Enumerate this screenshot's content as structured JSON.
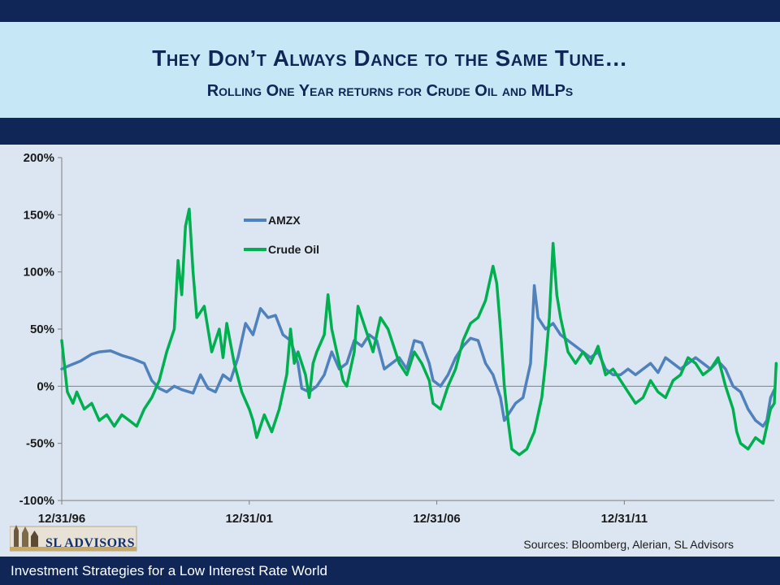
{
  "slide": {
    "title": "They Don’t Always Dance to the Same Tune…",
    "subtitle": "Rolling One Year returns for Crude Oil and MLPs",
    "sources": "Sources: Bloomberg, Alerian, SL Advisors",
    "footer": "Investment Strategies for a Low Interest Rate World",
    "logo_text": "SL ADVISORS"
  },
  "colors": {
    "navy": "#0f2657",
    "light_blue_panel": "#c6e7f6",
    "amzx": "#4f81bd",
    "crude": "#00b050"
  },
  "chart_data": {
    "type": "line",
    "ylabel": "",
    "xlabel": "",
    "ylim": [
      -100,
      200
    ],
    "yticks": [
      "200%",
      "150%",
      "100%",
      "50%",
      "0%",
      "-50%",
      "-100%"
    ],
    "xlim": [
      1997.0,
      2016.0
    ],
    "xticks": [
      {
        "label": "12/31/96",
        "x": 1997.0
      },
      {
        "label": "12/31/01",
        "x": 2002.0
      },
      {
        "label": "12/31/06",
        "x": 2007.0
      },
      {
        "label": "12/31/11",
        "x": 2012.0
      }
    ],
    "grid": false,
    "legend": "upper-middle",
    "series": [
      {
        "name": "AMZX",
        "color": "#4f81bd",
        "points": [
          [
            1997.0,
            15
          ],
          [
            1997.2,
            18
          ],
          [
            1997.5,
            22
          ],
          [
            1997.8,
            28
          ],
          [
            1998.0,
            30
          ],
          [
            1998.3,
            31
          ],
          [
            1998.6,
            27
          ],
          [
            1998.9,
            24
          ],
          [
            1999.2,
            20
          ],
          [
            1999.4,
            5
          ],
          [
            1999.6,
            -2
          ],
          [
            1999.8,
            -5
          ],
          [
            2000.0,
            0
          ],
          [
            2000.2,
            -3
          ],
          [
            2000.5,
            -6
          ],
          [
            2000.7,
            10
          ],
          [
            2000.9,
            -2
          ],
          [
            2001.1,
            -5
          ],
          [
            2001.3,
            10
          ],
          [
            2001.5,
            5
          ],
          [
            2001.7,
            25
          ],
          [
            2001.9,
            55
          ],
          [
            2002.1,
            45
          ],
          [
            2002.3,
            68
          ],
          [
            2002.5,
            60
          ],
          [
            2002.7,
            62
          ],
          [
            2002.9,
            45
          ],
          [
            2003.1,
            40
          ],
          [
            2003.3,
            20
          ],
          [
            2003.4,
            -2
          ],
          [
            2003.6,
            -5
          ],
          [
            2003.8,
            0
          ],
          [
            2004.0,
            10
          ],
          [
            2004.2,
            30
          ],
          [
            2004.4,
            15
          ],
          [
            2004.6,
            20
          ],
          [
            2004.8,
            40
          ],
          [
            2005.0,
            35
          ],
          [
            2005.2,
            45
          ],
          [
            2005.4,
            40
          ],
          [
            2005.6,
            15
          ],
          [
            2005.8,
            20
          ],
          [
            2006.0,
            25
          ],
          [
            2006.2,
            15
          ],
          [
            2006.4,
            40
          ],
          [
            2006.6,
            38
          ],
          [
            2006.8,
            20
          ],
          [
            2006.9,
            5
          ],
          [
            2007.1,
            0
          ],
          [
            2007.3,
            10
          ],
          [
            2007.5,
            25
          ],
          [
            2007.7,
            35
          ],
          [
            2007.9,
            42
          ],
          [
            2008.1,
            40
          ],
          [
            2008.3,
            20
          ],
          [
            2008.5,
            10
          ],
          [
            2008.7,
            -10
          ],
          [
            2008.8,
            -30
          ],
          [
            2008.9,
            -25
          ],
          [
            2009.1,
            -15
          ],
          [
            2009.3,
            -10
          ],
          [
            2009.5,
            20
          ],
          [
            2009.6,
            88
          ],
          [
            2009.7,
            60
          ],
          [
            2009.9,
            50
          ],
          [
            2010.1,
            55
          ],
          [
            2010.3,
            45
          ],
          [
            2010.5,
            40
          ],
          [
            2010.7,
            35
          ],
          [
            2010.9,
            30
          ],
          [
            2011.1,
            25
          ],
          [
            2011.3,
            30
          ],
          [
            2011.5,
            15
          ],
          [
            2011.7,
            10
          ],
          [
            2011.9,
            10
          ],
          [
            2012.1,
            15
          ],
          [
            2012.3,
            10
          ],
          [
            2012.5,
            15
          ],
          [
            2012.7,
            20
          ],
          [
            2012.9,
            12
          ],
          [
            2013.1,
            25
          ],
          [
            2013.3,
            20
          ],
          [
            2013.5,
            15
          ],
          [
            2013.7,
            20
          ],
          [
            2013.9,
            25
          ],
          [
            2014.1,
            20
          ],
          [
            2014.3,
            15
          ],
          [
            2014.5,
            22
          ],
          [
            2014.7,
            15
          ],
          [
            2014.9,
            0
          ],
          [
            2015.1,
            -5
          ],
          [
            2015.3,
            -20
          ],
          [
            2015.5,
            -30
          ],
          [
            2015.7,
            -35
          ],
          [
            2015.8,
            -30
          ],
          [
            2015.9,
            -10
          ],
          [
            2016.0,
            -3
          ]
        ]
      },
      {
        "name": "Crude Oil",
        "color": "#00b050",
        "points": [
          [
            1997.0,
            40
          ],
          [
            1997.05,
            25
          ],
          [
            1997.15,
            -5
          ],
          [
            1997.3,
            -15
          ],
          [
            1997.4,
            -5
          ],
          [
            1997.6,
            -20
          ],
          [
            1997.8,
            -15
          ],
          [
            1998.0,
            -30
          ],
          [
            1998.2,
            -25
          ],
          [
            1998.4,
            -35
          ],
          [
            1998.6,
            -25
          ],
          [
            1998.8,
            -30
          ],
          [
            1999.0,
            -35
          ],
          [
            1999.2,
            -20
          ],
          [
            1999.4,
            -10
          ],
          [
            1999.6,
            5
          ],
          [
            1999.8,
            30
          ],
          [
            2000.0,
            50
          ],
          [
            2000.1,
            110
          ],
          [
            2000.2,
            80
          ],
          [
            2000.3,
            140
          ],
          [
            2000.4,
            155
          ],
          [
            2000.5,
            100
          ],
          [
            2000.6,
            60
          ],
          [
            2000.8,
            70
          ],
          [
            2001.0,
            30
          ],
          [
            2001.2,
            50
          ],
          [
            2001.3,
            25
          ],
          [
            2001.4,
            55
          ],
          [
            2001.6,
            20
          ],
          [
            2001.8,
            -5
          ],
          [
            2002.0,
            -20
          ],
          [
            2002.1,
            -30
          ],
          [
            2002.2,
            -45
          ],
          [
            2002.4,
            -25
          ],
          [
            2002.6,
            -40
          ],
          [
            2002.8,
            -20
          ],
          [
            2003.0,
            10
          ],
          [
            2003.1,
            50
          ],
          [
            2003.2,
            20
          ],
          [
            2003.3,
            30
          ],
          [
            2003.5,
            10
          ],
          [
            2003.6,
            -10
          ],
          [
            2003.7,
            20
          ],
          [
            2003.8,
            30
          ],
          [
            2004.0,
            45
          ],
          [
            2004.1,
            80
          ],
          [
            2004.2,
            50
          ],
          [
            2004.4,
            20
          ],
          [
            2004.5,
            5
          ],
          [
            2004.6,
            0
          ],
          [
            2004.8,
            30
          ],
          [
            2004.9,
            70
          ],
          [
            2005.1,
            50
          ],
          [
            2005.3,
            30
          ],
          [
            2005.5,
            60
          ],
          [
            2005.7,
            50
          ],
          [
            2005.9,
            30
          ],
          [
            2006.0,
            20
          ],
          [
            2006.2,
            10
          ],
          [
            2006.4,
            30
          ],
          [
            2006.6,
            20
          ],
          [
            2006.8,
            5
          ],
          [
            2006.9,
            -15
          ],
          [
            2007.1,
            -20
          ],
          [
            2007.3,
            0
          ],
          [
            2007.5,
            15
          ],
          [
            2007.7,
            40
          ],
          [
            2007.9,
            55
          ],
          [
            2008.1,
            60
          ],
          [
            2008.3,
            75
          ],
          [
            2008.5,
            105
          ],
          [
            2008.6,
            90
          ],
          [
            2008.7,
            50
          ],
          [
            2008.8,
            0
          ],
          [
            2008.9,
            -30
          ],
          [
            2009.0,
            -55
          ],
          [
            2009.2,
            -60
          ],
          [
            2009.4,
            -55
          ],
          [
            2009.6,
            -40
          ],
          [
            2009.8,
            -10
          ],
          [
            2009.9,
            20
          ],
          [
            2010.0,
            60
          ],
          [
            2010.1,
            125
          ],
          [
            2010.2,
            80
          ],
          [
            2010.3,
            60
          ],
          [
            2010.5,
            30
          ],
          [
            2010.7,
            20
          ],
          [
            2010.9,
            30
          ],
          [
            2011.1,
            20
          ],
          [
            2011.3,
            35
          ],
          [
            2011.5,
            10
          ],
          [
            2011.7,
            15
          ],
          [
            2011.9,
            5
          ],
          [
            2012.1,
            -5
          ],
          [
            2012.3,
            -15
          ],
          [
            2012.5,
            -10
          ],
          [
            2012.7,
            5
          ],
          [
            2012.9,
            -5
          ],
          [
            2013.1,
            -10
          ],
          [
            2013.3,
            5
          ],
          [
            2013.5,
            10
          ],
          [
            2013.7,
            25
          ],
          [
            2013.9,
            20
          ],
          [
            2014.1,
            10
          ],
          [
            2014.3,
            15
          ],
          [
            2014.5,
            25
          ],
          [
            2014.7,
            0
          ],
          [
            2014.9,
            -20
          ],
          [
            2015.0,
            -40
          ],
          [
            2015.1,
            -50
          ],
          [
            2015.3,
            -55
          ],
          [
            2015.5,
            -45
          ],
          [
            2015.7,
            -50
          ],
          [
            2015.8,
            -35
          ],
          [
            2015.9,
            -20
          ],
          [
            2016.0,
            -15
          ],
          [
            2016.05,
            20
          ]
        ]
      }
    ]
  }
}
